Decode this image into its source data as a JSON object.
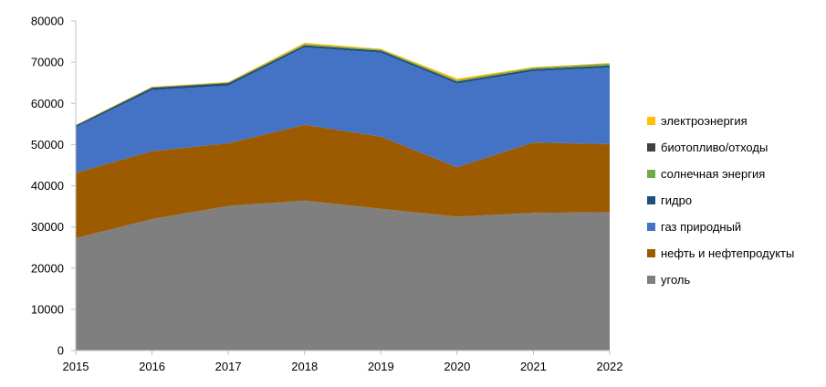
{
  "chart_data": {
    "type": "area",
    "stacked": true,
    "x": [
      "2015",
      "2016",
      "2017",
      "2018",
      "2019",
      "2020",
      "2021",
      "2022"
    ],
    "ylim": [
      0,
      80000
    ],
    "yticks": [
      "0",
      "10000",
      "20000",
      "30000",
      "40000",
      "50000",
      "60000",
      "70000",
      "80000"
    ],
    "grid": false,
    "legend_position": "right",
    "series": [
      {
        "name": "уголь",
        "color": "#7f7f7f",
        "values": [
          27300,
          31900,
          35100,
          36400,
          34400,
          32500,
          33400,
          33600
        ]
      },
      {
        "name": "нефть и нефтепродукты",
        "color": "#9c5b00",
        "values": [
          15800,
          16500,
          15200,
          18400,
          17500,
          12000,
          17100,
          16500
        ]
      },
      {
        "name": "газ природный",
        "color": "#4472c4",
        "values": [
          11100,
          14800,
          14000,
          18800,
          20400,
          20300,
          17300,
          18600
        ]
      },
      {
        "name": "гидро",
        "color": "#1f4e79",
        "values": [
          400,
          600,
          600,
          500,
          500,
          500,
          500,
          500
        ]
      },
      {
        "name": "солнечная энергия",
        "color": "#70ad47",
        "values": [
          30,
          80,
          100,
          200,
          200,
          250,
          300,
          350
        ]
      },
      {
        "name": "биотопливо/отходы",
        "color": "#404040",
        "values": [
          50,
          50,
          50,
          50,
          50,
          50,
          50,
          50
        ]
      },
      {
        "name": "электроэнергия",
        "color": "#ffc000",
        "values": [
          120,
          120,
          150,
          350,
          200,
          400,
          150,
          200
        ]
      }
    ]
  }
}
